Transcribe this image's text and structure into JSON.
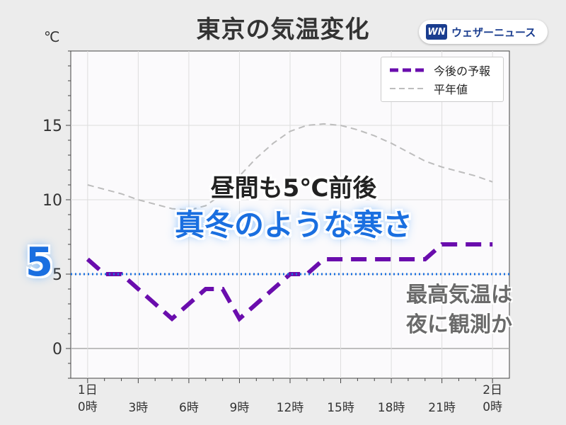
{
  "header": {
    "title": "東京の気温変化",
    "unit": "℃",
    "logo_mark": "WN",
    "logo_text": "ウェザーニュース"
  },
  "legend": {
    "forecast_label": "今後の予報",
    "normal_label": "平年値"
  },
  "annotations": {
    "line1": "昼間も5℃前後",
    "line2": "真冬のような寒さ",
    "big_value": "5",
    "note_line1": "最高気温は",
    "note_line2": "夜に観測か"
  },
  "chart_data": {
    "type": "line",
    "ylim": [
      -2,
      20
    ],
    "xlim": [
      -1,
      25
    ],
    "yticks": [
      0,
      5,
      10,
      15
    ],
    "xticks": [
      {
        "x": 0,
        "label": "1日\n0時"
      },
      {
        "x": 3,
        "label": "3時"
      },
      {
        "x": 6,
        "label": "6時"
      },
      {
        "x": 9,
        "label": "9時"
      },
      {
        "x": 12,
        "label": "12時"
      },
      {
        "x": 15,
        "label": "15時"
      },
      {
        "x": 18,
        "label": "18時"
      },
      {
        "x": 21,
        "label": "21時"
      },
      {
        "x": 24,
        "label": "2日\n0時"
      }
    ],
    "reference_line": 5,
    "series": [
      {
        "name": "今後の予報",
        "color": "#6a0dad",
        "style": "dashed-thick",
        "x": [
          0,
          1,
          2,
          3,
          4,
          5,
          6,
          7,
          8,
          9,
          10,
          11,
          12,
          13,
          14,
          15,
          16,
          17,
          18,
          19,
          20,
          21,
          22,
          23,
          24
        ],
        "y": [
          6,
          5,
          5,
          4,
          3,
          2,
          3,
          4,
          4,
          2,
          3,
          4,
          5,
          5,
          6,
          6,
          6,
          6,
          6,
          6,
          6,
          7,
          7,
          7,
          7
        ]
      },
      {
        "name": "平年値",
        "color": "#bdbdbd",
        "style": "dashed-thin",
        "x": [
          0,
          1,
          2,
          3,
          4,
          5,
          6,
          7,
          8,
          9,
          10,
          11,
          12,
          13,
          14,
          15,
          16,
          17,
          18,
          19,
          20,
          21,
          22,
          23,
          24
        ],
        "y": [
          11,
          10.7,
          10.4,
          10,
          9.7,
          9.4,
          9.3,
          9.6,
          10.4,
          11.6,
          12.8,
          13.8,
          14.6,
          15,
          15.1,
          15,
          14.7,
          14.3,
          13.8,
          13.2,
          12.6,
          12.2,
          11.9,
          11.6,
          11.2
        ]
      }
    ]
  }
}
